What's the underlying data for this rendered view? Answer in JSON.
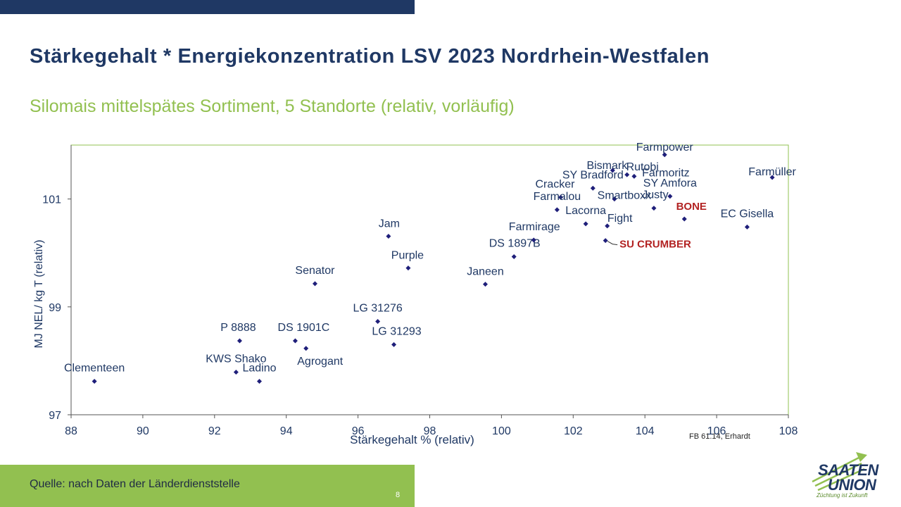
{
  "slide": {
    "title": "Stärkegehalt * Energiekonzentration LSV 2023 Nordrhein-Westfalen",
    "subtitle": "Silomais mittelspätes Sortiment, 5 Standorte (relativ, vorläufig)",
    "source": "Quelle: nach Daten der Länderdienststelle",
    "page_number": "8",
    "credit": "FB 61.14, Erhardt",
    "logo": {
      "line1": "SAATEN",
      "line2": "UNION",
      "slogan": "Züchtung ist Zukunft"
    }
  },
  "colors": {
    "navy": "#1f3864",
    "green": "#92c050",
    "point": "#1f1f7a",
    "highlight": "#b22222"
  },
  "chart_data": {
    "type": "scatter",
    "title": "",
    "xlabel": "Stärkegehalt % (relativ)",
    "ylabel": "MJ NEL/ kg T (relativ)",
    "xlim": [
      88,
      108
    ],
    "ylim": [
      97,
      102
    ],
    "xticks": [
      "88",
      "90",
      "92",
      "94",
      "96",
      "98",
      "100",
      "102",
      "104",
      "106",
      "108"
    ],
    "yticks": [
      "97",
      "99",
      "101"
    ],
    "grid": false,
    "points": [
      {
        "name": "Clementeen",
        "x": 88.65,
        "y": 97.62
      },
      {
        "name": "KWS Shako",
        "x": 92.6,
        "y": 97.79
      },
      {
        "name": "Ladino",
        "x": 93.25,
        "y": 97.62
      },
      {
        "name": "P 8888",
        "x": 92.7,
        "y": 98.37
      },
      {
        "name": "DS 1901C",
        "x": 94.25,
        "y": 98.37
      },
      {
        "name": "Agrogant",
        "x": 94.55,
        "y": 98.23
      },
      {
        "name": "Senator",
        "x": 94.8,
        "y": 99.43
      },
      {
        "name": "LG 31276",
        "x": 96.55,
        "y": 98.73
      },
      {
        "name": "LG 31293",
        "x": 97.0,
        "y": 98.3
      },
      {
        "name": "Jam",
        "x": 96.85,
        "y": 100.31
      },
      {
        "name": "Purple",
        "x": 97.4,
        "y": 99.72
      },
      {
        "name": "Janeen",
        "x": 99.55,
        "y": 99.42
      },
      {
        "name": "DS 1897B",
        "x": 100.35,
        "y": 99.93
      },
      {
        "name": "Farmirage",
        "x": 100.9,
        "y": 100.24
      },
      {
        "name": "Cracker",
        "x": 101.65,
        "y": 101.03
      },
      {
        "name": "Farmalou",
        "x": 101.55,
        "y": 100.8
      },
      {
        "name": "Lacorna",
        "x": 102.35,
        "y": 100.54
      },
      {
        "name": "SY Bradford",
        "x": 102.55,
        "y": 101.2
      },
      {
        "name": "Bismark",
        "x": 103.1,
        "y": 101.53
      },
      {
        "name": "Rutobi",
        "x": 103.5,
        "y": 101.45
      },
      {
        "name": "Farmoritz",
        "x": 103.7,
        "y": 101.42
      },
      {
        "name": "Farmpower",
        "x": 104.55,
        "y": 101.82
      },
      {
        "name": "SY Amfora",
        "x": 104.7,
        "y": 101.05
      },
      {
        "name": "Smartboxx",
        "x": 103.15,
        "y": 101.0
      },
      {
        "name": "Justy",
        "x": 104.25,
        "y": 100.83
      },
      {
        "name": "Fight",
        "x": 102.95,
        "y": 100.5
      },
      {
        "name": "SU CRUMBER",
        "x": 102.9,
        "y": 100.23,
        "highlight": true
      },
      {
        "name": "BONE",
        "x": 105.1,
        "y": 100.63,
        "highlight": true
      },
      {
        "name": "EC Gisella",
        "x": 106.85,
        "y": 100.48
      },
      {
        "name": "Farmüller",
        "x": 107.55,
        "y": 101.4
      }
    ]
  }
}
